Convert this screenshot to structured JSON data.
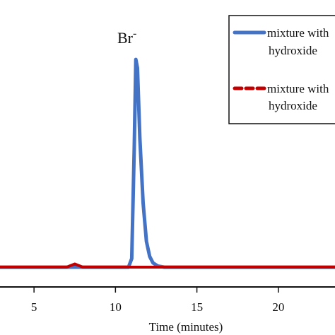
{
  "chart_data": {
    "type": "line",
    "title": "",
    "xlabel": "Time (minutes)",
    "ylabel": "",
    "xlim": [
      2,
      24
    ],
    "ylim": [
      0,
      1.0
    ],
    "x_ticks": [
      5,
      10,
      15,
      20
    ],
    "x_tick_labels": [
      "5",
      "10",
      "15",
      "20"
    ],
    "grid": false,
    "legend_position": "top-right",
    "annotation": {
      "text": "Br",
      "superscript": "-",
      "x": 11.3,
      "y": 0.97
    },
    "series": [
      {
        "name_lines": [
          "mixture with",
          "hydroxide"
        ],
        "color": "#4472C4",
        "style": "solid",
        "x": [
          2,
          3,
          4,
          5,
          6,
          7,
          7.5,
          8,
          9,
          10,
          10.8,
          11.0,
          11.15,
          11.25,
          11.35,
          11.5,
          11.7,
          11.9,
          12.1,
          12.3,
          12.6,
          13,
          14,
          15,
          16,
          17,
          18,
          19,
          20,
          21,
          22,
          23,
          24
        ],
        "y": [
          0.0,
          0.0,
          0.0,
          0.0,
          0.0,
          0.0,
          0.0,
          0.0,
          0.0,
          0.0,
          0.0,
          0.04,
          0.55,
          0.97,
          0.93,
          0.6,
          0.3,
          0.12,
          0.05,
          0.02,
          0.005,
          0.0,
          0.0,
          0.0,
          0.0,
          0.0,
          0.0,
          0.0,
          0.0,
          0.0,
          0.0,
          0.0,
          0.0
        ]
      },
      {
        "name_lines": [
          "mixture with",
          "hydroxide"
        ],
        "color": "#C00000",
        "style": "dashed",
        "x": [
          2,
          3,
          4,
          5,
          6,
          7,
          7.5,
          8,
          9,
          10,
          11,
          12,
          13,
          14,
          15,
          16,
          17,
          18,
          19,
          20,
          21,
          22,
          23,
          24
        ],
        "y": [
          0.0,
          0.0,
          0.0,
          0.0,
          0.0,
          0.0,
          0.015,
          0.0,
          0.0,
          0.0,
          0.0,
          0.0,
          0.0,
          0.0,
          0.0,
          0.0,
          0.0,
          0.0,
          0.0,
          0.0,
          0.0,
          0.0,
          0.0,
          0.0
        ]
      }
    ]
  }
}
